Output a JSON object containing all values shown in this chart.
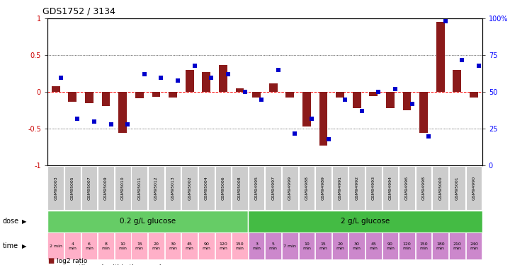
{
  "title": "GDS1752 / 3134",
  "samples": [
    "GSM95003",
    "GSM95005",
    "GSM95007",
    "GSM95009",
    "GSM95010",
    "GSM95011",
    "GSM95012",
    "GSM95013",
    "GSM95002",
    "GSM95004",
    "GSM95006",
    "GSM95008",
    "GSM94995",
    "GSM94997",
    "GSM94999",
    "GSM94988",
    "GSM94989",
    "GSM94991",
    "GSM94992",
    "GSM94993",
    "GSM94994",
    "GSM94996",
    "GSM94998",
    "GSM95000",
    "GSM95001",
    "GSM94990"
  ],
  "log2_ratio": [
    0.08,
    -0.13,
    -0.15,
    -0.19,
    -0.55,
    -0.08,
    -0.06,
    -0.07,
    0.3,
    0.27,
    0.37,
    0.05,
    -0.07,
    0.12,
    -0.07,
    -0.47,
    -0.73,
    -0.07,
    -0.22,
    -0.05,
    -0.22,
    -0.25,
    -0.55,
    0.95,
    0.3,
    -0.07
  ],
  "percentile": [
    60,
    32,
    30,
    28,
    28,
    62,
    60,
    58,
    68,
    60,
    62,
    50,
    45,
    65,
    22,
    32,
    18,
    45,
    37,
    50,
    52,
    42,
    20,
    98,
    72,
    68
  ],
  "bar_color": "#8B1A1A",
  "sq_color": "#0000CC",
  "ylim": [
    -1,
    1
  ],
  "yticks_left": [
    -1,
    -0.5,
    0,
    0.5,
    1
  ],
  "yticks_right": [
    0,
    25,
    50,
    75,
    100
  ],
  "background_color": "#ffffff",
  "plot_bg": "#ffffff",
  "green_color": "#66CC66",
  "pink_color": "#FFB0C8",
  "mauve_color": "#CC88CC",
  "gray_color": "#CCCCCC",
  "time_labels_group1": [
    "2 min",
    "4\nmin",
    "6\nmin",
    "8\nmin",
    "10\nmin",
    "15\nmin",
    "20\nmin",
    "30\nmin",
    "45\nmin",
    "90\nmin",
    "120\nmin",
    "150\nmin"
  ],
  "time_labels_group2": [
    "3\nmin",
    "5\nmin",
    "7 min",
    "10\nmin",
    "15\nmin",
    "20\nmin",
    "30\nmin",
    "45\nmin",
    "90\nmin",
    "120\nmin",
    "150\nmin",
    "180\nmin",
    "210\nmin",
    "240\nmin"
  ],
  "n_group1": 12,
  "n_group2": 14
}
